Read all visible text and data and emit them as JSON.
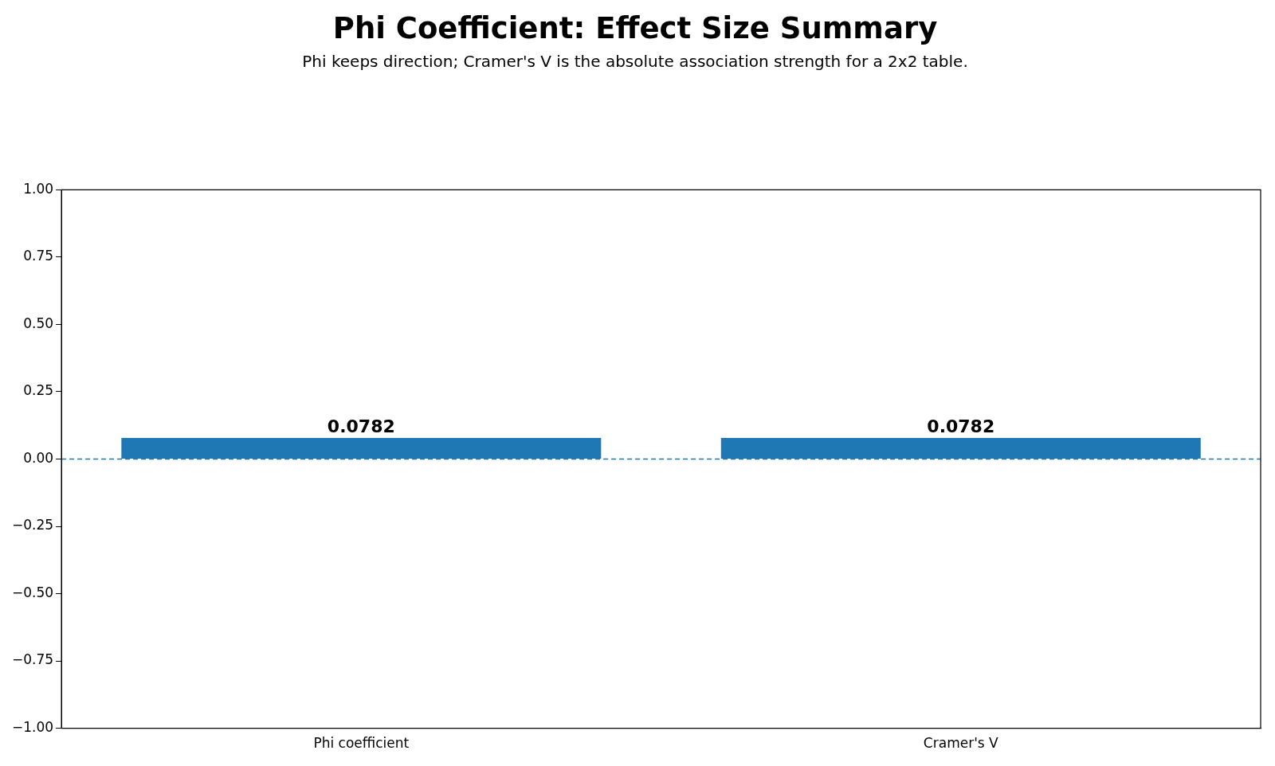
{
  "chart_data": {
    "type": "bar",
    "title": "Phi Coefficient: Effect Size Summary",
    "subtitle": "Phi keeps direction; Cramer's V is the absolute association strength for a 2x2 table.",
    "categories": [
      "Phi coefficient",
      "Cramer's V"
    ],
    "values": [
      0.0782,
      0.0782
    ],
    "color": "#1f77b4",
    "ylim": [
      -1,
      1
    ],
    "yticks": [
      {
        "value": -1,
        "label": "−1.00"
      },
      {
        "value": -0.75,
        "label": "−0.75"
      },
      {
        "value": -0.5,
        "label": "−0.50"
      },
      {
        "value": -0.25,
        "label": "−0.25"
      },
      {
        "value": 0,
        "label": "0.00"
      },
      {
        "value": 0.25,
        "label": "0.25"
      },
      {
        "value": 0.5,
        "label": "0.50"
      },
      {
        "value": 0.75,
        "label": "0.75"
      },
      {
        "value": 1,
        "label": "1.00"
      }
    ],
    "ref_lines": [
      {
        "axis": "y",
        "value": 0,
        "color": "#1f77b4",
        "line_style": "dashed"
      }
    ],
    "data_labels": true,
    "grid": false,
    "legend": false
  }
}
